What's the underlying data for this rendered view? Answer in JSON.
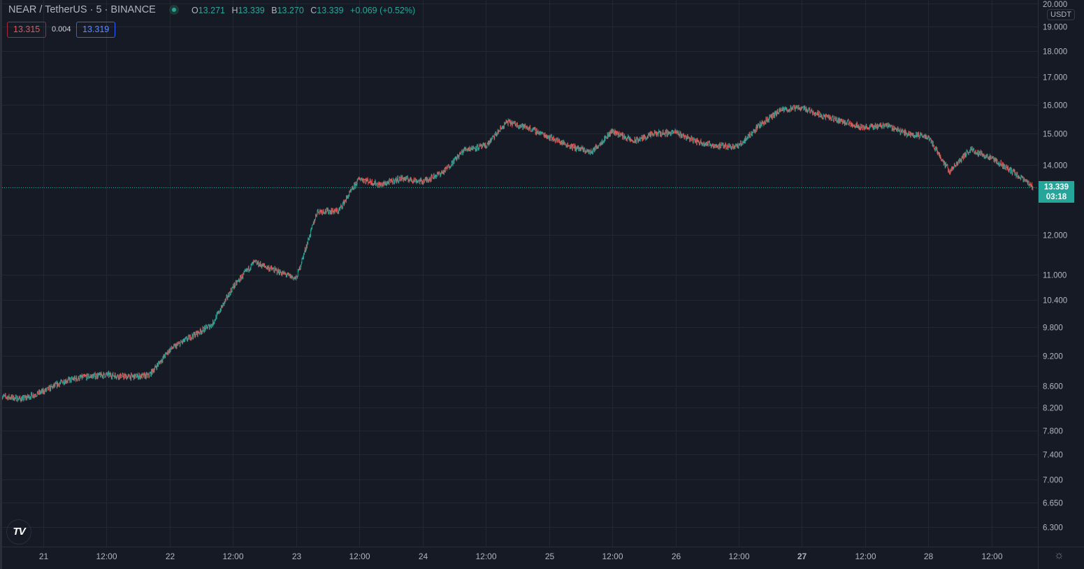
{
  "header": {
    "symbol": "NEAR / TetherUS · 5 · BINANCE",
    "status_color": "#26a69a",
    "ohlc": {
      "o_label": "O",
      "o": "13.271",
      "h_label": "H",
      "h": "13.339",
      "b_label": "B",
      "b": "13.270",
      "c_label": "C",
      "c": "13.339",
      "change": "+0.069 (+0.52%)"
    },
    "sell_price": "13.315",
    "spread": "0.004",
    "buy_price": "13.319"
  },
  "price_axis": {
    "currency": "USDT",
    "current_price": "13.339",
    "countdown": "03:18"
  },
  "logo_text": "TV",
  "colors": {
    "up": "#26a69a",
    "down": "#ef5350",
    "background": "#161a25",
    "grid": "#232733"
  },
  "chart_data": {
    "type": "candlestick",
    "interval": "5",
    "y_scale": "log",
    "ylim": [
      6.1,
      20.2
    ],
    "grid": true,
    "y_ticks": [
      "20.000",
      "19.000",
      "18.000",
      "17.000",
      "16.000",
      "15.000",
      "14.000",
      "12.000",
      "11.000",
      "10.400",
      "9.800",
      "9.200",
      "8.600",
      "8.200",
      "7.800",
      "7.400",
      "7.000",
      "6.650",
      "6.300"
    ],
    "x_ticks": [
      "21",
      "12:00",
      "22",
      "12:00",
      "23",
      "12:00",
      "24",
      "12:00",
      "25",
      "12:00",
      "26",
      "12:00",
      "27",
      "12:00",
      "28",
      "12:00"
    ],
    "approx_closes_4h": {
      "x": [
        "20 16:00",
        "20 20:00",
        "21 00:00",
        "21 04:00",
        "21 08:00",
        "21 12:00",
        "21 16:00",
        "21 20:00",
        "22 00:00",
        "22 04:00",
        "22 08:00",
        "22 12:00",
        "22 16:00",
        "22 20:00",
        "23 00:00",
        "23 04:00",
        "23 08:00",
        "23 12:00",
        "23 16:00",
        "23 20:00",
        "24 00:00",
        "24 04:00",
        "24 08:00",
        "24 12:00",
        "24 16:00",
        "24 20:00",
        "25 00:00",
        "25 04:00",
        "25 08:00",
        "25 12:00",
        "25 16:00",
        "25 20:00",
        "26 00:00",
        "26 04:00",
        "26 08:00",
        "26 12:00",
        "26 16:00",
        "26 20:00",
        "27 00:00",
        "27 04:00",
        "27 08:00",
        "27 12:00",
        "27 16:00",
        "27 20:00",
        "28 00:00",
        "28 04:00",
        "28 08:00",
        "28 12:00",
        "28 16:00",
        "28 19:50"
      ],
      "y": [
        8.41,
        8.36,
        8.5,
        8.7,
        8.78,
        8.82,
        8.78,
        8.8,
        9.32,
        9.59,
        9.85,
        10.7,
        11.3,
        11.1,
        10.9,
        12.65,
        12.65,
        13.6,
        13.4,
        13.6,
        13.5,
        13.8,
        14.5,
        14.6,
        15.4,
        15.2,
        14.9,
        14.6,
        14.4,
        15.1,
        14.75,
        15.0,
        15.05,
        14.75,
        14.6,
        14.6,
        15.3,
        15.8,
        15.9,
        15.6,
        15.4,
        15.2,
        15.3,
        15.0,
        14.9,
        13.8,
        14.5,
        14.2,
        13.8,
        13.339
      ]
    },
    "last_price": 13.339
  }
}
